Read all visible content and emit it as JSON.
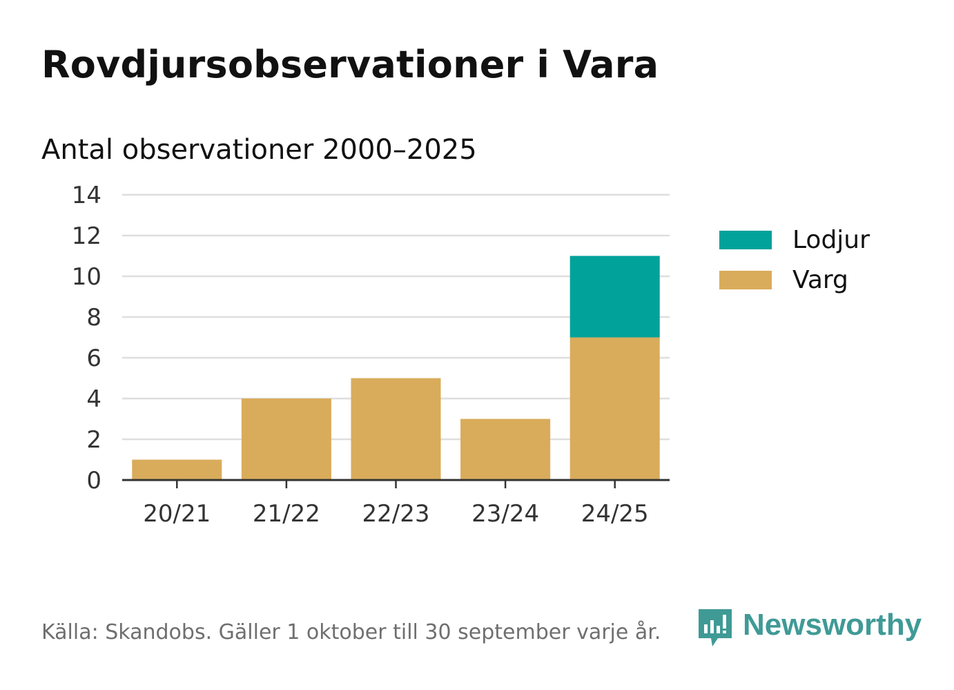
{
  "title": "Rovdjursobservationer i Vara",
  "subtitle": "Antal observationer 2000–2025",
  "source": "Källa: Skandobs. Gäller 1 oktober till 30 september varje år.",
  "brand": {
    "name": "Newsworthy",
    "icon": "newsworthy-logo-icon",
    "color": "#3f9a96"
  },
  "chart_data": {
    "type": "bar",
    "stacked": true,
    "categories": [
      "20/21",
      "21/22",
      "22/23",
      "23/24",
      "24/25"
    ],
    "series": [
      {
        "name": "Varg",
        "color": "#d9ac5b",
        "values": [
          1,
          4,
          5,
          3,
          7
        ]
      },
      {
        "name": "Lodjur",
        "color": "#00a29a",
        "values": [
          0,
          0,
          0,
          0,
          4
        ]
      }
    ],
    "legend": [
      {
        "name": "Lodjur",
        "color": "#00a29a"
      },
      {
        "name": "Varg",
        "color": "#d9ac5b"
      }
    ],
    "yticks": [
      "0",
      "2",
      "4",
      "6",
      "8",
      "10",
      "12",
      "14"
    ],
    "ylim": [
      0,
      14
    ],
    "grid": true,
    "legend_position": "right",
    "xlabel": "",
    "ylabel": ""
  }
}
